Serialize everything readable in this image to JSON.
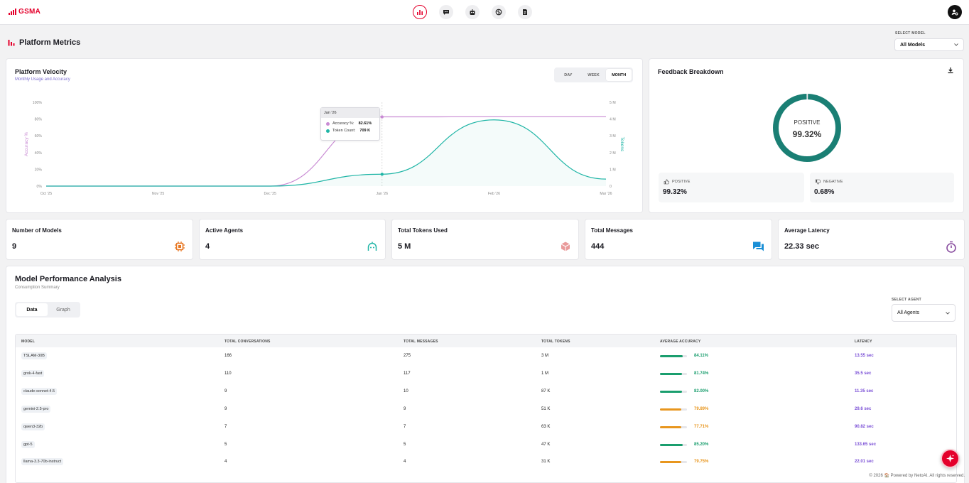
{
  "brand": {
    "logo_text": "GSMA",
    "accent": "#e4002b"
  },
  "nav": [
    {
      "name": "metrics",
      "icon": "bar-chart-icon",
      "active": true
    },
    {
      "name": "chat",
      "icon": "chat-bubble-icon",
      "active": false
    },
    {
      "name": "agents",
      "icon": "robot-icon",
      "active": false
    },
    {
      "name": "models",
      "icon": "brain-icon",
      "active": false
    },
    {
      "name": "docs",
      "icon": "document-icon",
      "active": false
    }
  ],
  "page": {
    "title": "Platform Metrics"
  },
  "model_select": {
    "label": "SELECT MODEL",
    "value": "All Models"
  },
  "velocity": {
    "title": "Platform Velocity",
    "subtitle": "Monthly Usage and Accuracy",
    "ranges": [
      "DAY",
      "WEEK",
      "MONTH"
    ],
    "active_range": "MONTH",
    "tooltip": {
      "date": "Jan '26",
      "accuracy_label": "Accuracy %:",
      "accuracy_value": "82.61%",
      "tokens_label": "Token Count:",
      "tokens_value": "709 K"
    }
  },
  "chart_data": {
    "type": "line",
    "title": "Platform Velocity",
    "x": [
      "Oct '25",
      "Nov '25",
      "Dec '25",
      "Jan '26",
      "Feb '26",
      "Mar '26"
    ],
    "y_left": {
      "label": "Accuracy %",
      "ticks": [
        "0%",
        "20%",
        "40%",
        "60%",
        "80%",
        "100%"
      ],
      "range": [
        0,
        100
      ]
    },
    "y_right": {
      "label": "Tokens",
      "ticks": [
        "0",
        "1 M",
        "2 M",
        "3 M",
        "4 M",
        "5 M"
      ],
      "range": [
        0,
        5000000
      ]
    },
    "series": [
      {
        "name": "Accuracy %",
        "axis": "left",
        "color": "#c98bd4",
        "values": [
          0,
          0,
          0,
          82.61,
          82.7,
          82.7
        ]
      },
      {
        "name": "Token Count",
        "axis": "right",
        "color": "#1fb5a6",
        "values": [
          0,
          0,
          0,
          709000,
          3950000,
          420000
        ]
      }
    ],
    "grid": false,
    "legend": "none"
  },
  "feedback": {
    "title": "Feedback Breakdown",
    "center_label": "POSITIVE",
    "center_value": "99.32%",
    "positive": {
      "label": "POSITIVE",
      "value": "99.32%",
      "fraction": 0.9932,
      "color": "#1a7f74"
    },
    "negative": {
      "label": "NEGATIVE",
      "value": "0.68%",
      "fraction": 0.0068
    }
  },
  "stats": [
    {
      "title": "Number of Models",
      "value": "9",
      "icon": "chip-icon",
      "color": "#e87722"
    },
    {
      "title": "Active Agents",
      "value": "4",
      "icon": "robot-head-icon",
      "color": "#1fb5a6"
    },
    {
      "title": "Total Tokens Used",
      "value": "5 M",
      "icon": "cube-icon",
      "color": "#e07a7a"
    },
    {
      "title": "Total Messages",
      "value": "444",
      "icon": "chat-icon",
      "color": "#1a8fd6"
    },
    {
      "title": "Average Latency",
      "value": "22.33 sec",
      "icon": "stopwatch-icon",
      "color": "#8a4fa0"
    }
  ],
  "analysis": {
    "title": "Model Performance Analysis",
    "subtitle": "Consumption Summary",
    "tabs": [
      "Data",
      "Graph"
    ],
    "active_tab": "Data",
    "agent_select": {
      "label": "SELECT AGENT",
      "value": "All Agents"
    },
    "columns": [
      "MODEL",
      "TOTAL CONVERSATIONS",
      "TOTAL MESSAGES",
      "TOTAL TOKENS",
      "AVERAGE ACCURACY",
      "LATENCY"
    ],
    "rows": [
      {
        "model": "TSLAM-30B",
        "conversations": "166",
        "messages": "275",
        "tokens": "3 M",
        "accuracy": "84.11%",
        "accuracy_value": 84.11,
        "latency": "13.55 sec",
        "status": "good"
      },
      {
        "model": "grok-4-fast",
        "conversations": "110",
        "messages": "117",
        "tokens": "1 M",
        "accuracy": "81.74%",
        "accuracy_value": 81.74,
        "latency": "35.5 sec",
        "status": "good"
      },
      {
        "model": "claude-sonnet-4.5",
        "conversations": "9",
        "messages": "10",
        "tokens": "87 K",
        "accuracy": "82.00%",
        "accuracy_value": 82.0,
        "latency": "11.35 sec",
        "status": "good"
      },
      {
        "model": "gemini-2.5-pro",
        "conversations": "9",
        "messages": "9",
        "tokens": "51 K",
        "accuracy": "79.89%",
        "accuracy_value": 79.89,
        "latency": "29.6 sec",
        "status": "warn"
      },
      {
        "model": "qwen3-32b",
        "conversations": "7",
        "messages": "7",
        "tokens": "63 K",
        "accuracy": "77.71%",
        "accuracy_value": 77.71,
        "latency": "90.82 sec",
        "status": "warn"
      },
      {
        "model": "gpt-5",
        "conversations": "5",
        "messages": "5",
        "tokens": "47 K",
        "accuracy": "85.20%",
        "accuracy_value": 85.2,
        "latency": "133.65 sec",
        "status": "good"
      },
      {
        "model": "llama-3.3-70b-instruct",
        "conversations": "4",
        "messages": "4",
        "tokens": "31 K",
        "accuracy": "79.75%",
        "accuracy_value": 79.75,
        "latency": "22.01 sec",
        "status": "warn"
      }
    ],
    "colors": {
      "good": "#1a9e6e",
      "warn": "#e8961e"
    }
  },
  "footer": {
    "text": "© 2026 🏠 Powered by NetoAI. All rights reserved."
  }
}
